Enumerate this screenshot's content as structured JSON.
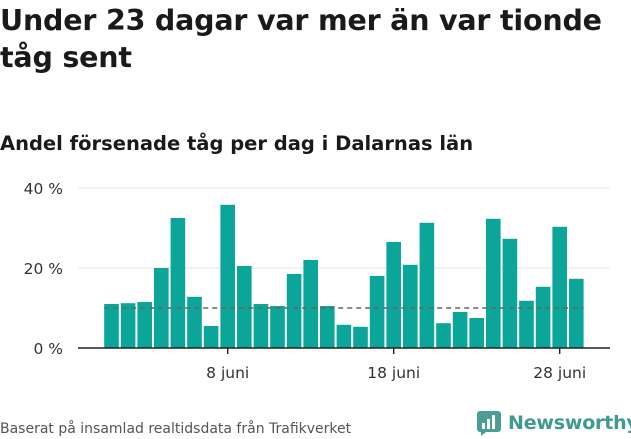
{
  "header": {
    "title": "Under 23 dagar var mer än var tionde tåg sent",
    "subtitle": "Andel försenade tåg per dag i Dalarnas län"
  },
  "footer": {
    "source": "Baserat på insamlad realtidsdata från Trafikverket",
    "brand": "Newsworthy"
  },
  "colors": {
    "bar": "#0ba59a",
    "threshold": "#666666",
    "axis": "#222222",
    "grid": "#e6e6e6"
  },
  "chart_data": {
    "type": "bar",
    "x_day_start": 1,
    "values": [
      11,
      11.2,
      11.5,
      20,
      32.5,
      12.8,
      5.5,
      35.8,
      20.5,
      11,
      10.5,
      18.5,
      22,
      10.5,
      5.8,
      5.3,
      18,
      26.5,
      20.8,
      31.3,
      6.2,
      9,
      7.5,
      32.3,
      27.3,
      11.8,
      15.3,
      30.3,
      17.3
    ],
    "ylim": [
      0,
      40
    ],
    "yticks": [
      {
        "value": 0,
        "label": "0 %"
      },
      {
        "value": 20,
        "label": "20 %"
      },
      {
        "value": 40,
        "label": "40 %"
      }
    ],
    "xticks": [
      {
        "day": 8,
        "label": "8 juni"
      },
      {
        "day": 18,
        "label": "18 juni"
      },
      {
        "day": 28,
        "label": "28 juni"
      }
    ],
    "threshold": 10,
    "grid": true,
    "legend": "none"
  }
}
